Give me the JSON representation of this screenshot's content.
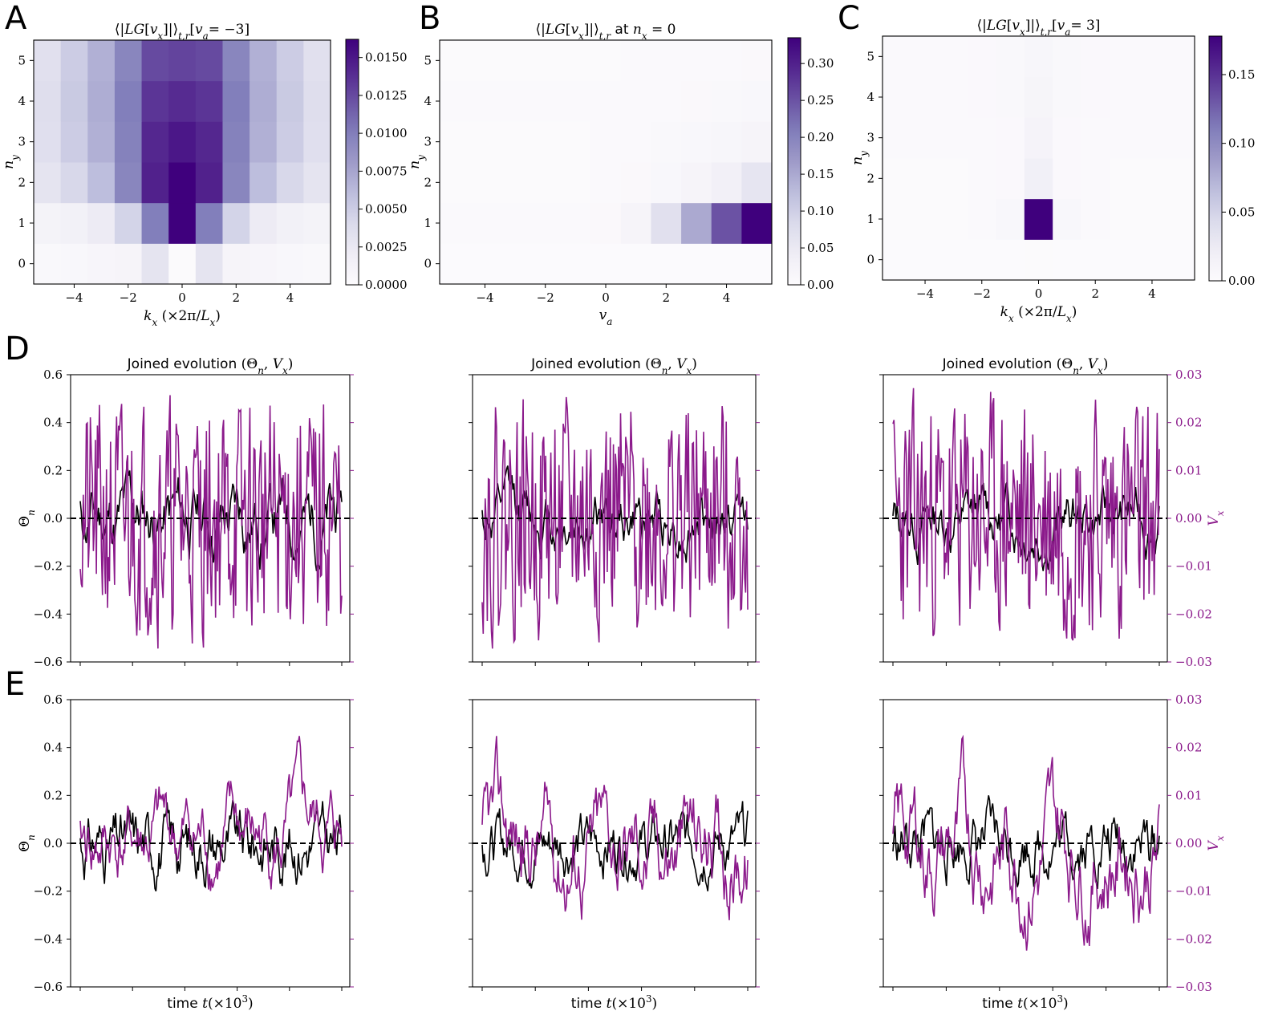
{
  "panel_letters": [
    "A",
    "B",
    "C",
    "D",
    "E"
  ],
  "colors": {
    "purple": "#8b1a8b",
    "black": "#000000",
    "cmap_low": "#fcfbfd",
    "cmap_high": "#3f007d"
  },
  "chart_data": [
    {
      "id": "A",
      "type": "heatmap",
      "title": "⟨|LG[vx]|⟩t,r[va= −3]",
      "xlabel": "kx (×2π/Lx)",
      "ylabel": "ny",
      "x": [
        -5,
        -4,
        -3,
        -2,
        -1,
        0,
        1,
        2,
        3,
        4,
        5
      ],
      "y": [
        0,
        1,
        2,
        3,
        4,
        5
      ],
      "xticks": [
        -4,
        -2,
        0,
        2,
        4
      ],
      "yticks": [
        0,
        1,
        2,
        3,
        4,
        5
      ],
      "clim": [
        0,
        0.0162
      ],
      "colorbar_ticks": [
        "0.0000",
        "0.0025",
        "0.0050",
        "0.0075",
        "0.0100",
        "0.0125",
        "0.0150"
      ],
      "colorbar_tick_values": [
        0,
        0.0025,
        0.005,
        0.0075,
        0.01,
        0.0125,
        0.015
      ],
      "z": [
        [
          0.0005,
          0.0006,
          0.0008,
          0.001,
          0.003,
          0.0002,
          0.003,
          0.001,
          0.0008,
          0.0006,
          0.0005
        ],
        [
          0.0012,
          0.0015,
          0.0022,
          0.0045,
          0.01,
          0.0165,
          0.01,
          0.0045,
          0.0022,
          0.0015,
          0.0012
        ],
        [
          0.003,
          0.0042,
          0.006,
          0.0095,
          0.0145,
          0.0162,
          0.0145,
          0.0095,
          0.006,
          0.0042,
          0.003
        ],
        [
          0.0035,
          0.005,
          0.0068,
          0.0098,
          0.0142,
          0.015,
          0.0142,
          0.0098,
          0.0068,
          0.005,
          0.0035
        ],
        [
          0.0036,
          0.0052,
          0.007,
          0.01,
          0.0135,
          0.014,
          0.0135,
          0.01,
          0.007,
          0.0052,
          0.0036
        ],
        [
          0.0034,
          0.005,
          0.0068,
          0.0095,
          0.0125,
          0.0128,
          0.0125,
          0.0095,
          0.0068,
          0.005,
          0.0034
        ]
      ]
    },
    {
      "id": "B",
      "type": "heatmap",
      "title": "⟨|LG[vx]|⟩t,r at nx = 0",
      "xlabel": "va",
      "ylabel": "ny",
      "x": [
        -5,
        -4,
        -3,
        -2,
        -1,
        0,
        1,
        2,
        3,
        4,
        5
      ],
      "y": [
        0,
        1,
        2,
        3,
        4,
        5
      ],
      "xticks": [
        -4,
        -2,
        0,
        2,
        4
      ],
      "yticks": [
        0,
        1,
        2,
        3,
        4,
        5
      ],
      "clim": [
        0,
        0.335
      ],
      "colorbar_ticks": [
        "0.00",
        "0.05",
        "0.10",
        "0.15",
        "0.20",
        "0.25",
        "0.30"
      ],
      "colorbar_tick_values": [
        0,
        0.05,
        0.1,
        0.15,
        0.2,
        0.25,
        0.3
      ],
      "z": [
        [
          0.002,
          0.002,
          0.002,
          0.002,
          0.002,
          0.002,
          0.002,
          0.002,
          0.002,
          0.002,
          0.002
        ],
        [
          0.006,
          0.006,
          0.006,
          0.006,
          0.006,
          0.008,
          0.02,
          0.07,
          0.15,
          0.25,
          0.335
        ],
        [
          0.004,
          0.004,
          0.004,
          0.004,
          0.004,
          0.005,
          0.008,
          0.012,
          0.02,
          0.032,
          0.06
        ],
        [
          0.004,
          0.004,
          0.004,
          0.004,
          0.004,
          0.005,
          0.007,
          0.01,
          0.012,
          0.015,
          0.02
        ],
        [
          0.005,
          0.005,
          0.005,
          0.005,
          0.005,
          0.005,
          0.006,
          0.007,
          0.008,
          0.01,
          0.012
        ],
        [
          0.004,
          0.004,
          0.004,
          0.004,
          0.004,
          0.004,
          0.005,
          0.005,
          0.006,
          0.007,
          0.008
        ]
      ]
    },
    {
      "id": "C",
      "type": "heatmap",
      "title": "⟨|LG[vx]|⟩t,r[va= 3]",
      "xlabel": "kx (×2π/Lx)",
      "ylabel": "ny",
      "x": [
        -5,
        -4,
        -3,
        -2,
        -1,
        0,
        1,
        2,
        3,
        4,
        5
      ],
      "y": [
        0,
        1,
        2,
        3,
        4,
        5
      ],
      "xticks": [
        -4,
        -2,
        0,
        2,
        4
      ],
      "yticks": [
        0,
        1,
        2,
        3,
        4,
        5
      ],
      "clim": [
        0,
        0.178
      ],
      "colorbar_ticks": [
        "0.00",
        "0.05",
        "0.10",
        "0.15"
      ],
      "colorbar_tick_values": [
        0,
        0.05,
        0.1,
        0.15
      ],
      "z": [
        [
          0.001,
          0.001,
          0.001,
          0.001,
          0.001,
          0.002,
          0.001,
          0.001,
          0.001,
          0.001,
          0.001
        ],
        [
          0.002,
          0.002,
          0.002,
          0.003,
          0.006,
          0.178,
          0.006,
          0.003,
          0.002,
          0.002,
          0.002
        ],
        [
          0.002,
          0.002,
          0.002,
          0.003,
          0.004,
          0.018,
          0.004,
          0.003,
          0.002,
          0.002,
          0.002
        ],
        [
          0.003,
          0.003,
          0.003,
          0.003,
          0.004,
          0.012,
          0.004,
          0.003,
          0.003,
          0.003,
          0.003
        ],
        [
          0.003,
          0.003,
          0.003,
          0.004,
          0.005,
          0.01,
          0.005,
          0.004,
          0.003,
          0.003,
          0.003
        ],
        [
          0.003,
          0.003,
          0.003,
          0.004,
          0.005,
          0.008,
          0.005,
          0.004,
          0.003,
          0.003,
          0.003
        ]
      ]
    },
    {
      "id": "D",
      "type": "line",
      "titles": [
        "Joined evolution (Θn, Vx)",
        "Joined evolution (Θn, Vx)",
        "Joined evolution (Θn, Vx)"
      ],
      "ylabel_left": "Θn",
      "ylabel_right": "Vx",
      "ylim_left": [
        -0.6,
        0.6
      ],
      "ylim_right": [
        -0.03,
        0.03
      ],
      "yticks_left": [
        "0.6",
        "0.4",
        "0.2",
        "0.0",
        "−0.2",
        "−0.4",
        "−0.6"
      ],
      "yticks_right": [
        "0.03",
        "0.02",
        "0.01",
        "0.00",
        "−0.01",
        "−0.02",
        "−0.03"
      ],
      "series": [
        {
          "name": "Θn",
          "color": "#000000",
          "amp": 0.22,
          "smooth": 0.88,
          "noise": 0.05,
          "seeds": [
            11,
            12,
            13
          ]
        },
        {
          "name": "Vx",
          "color": "#8b1a8b",
          "amp": 0.34,
          "smooth": 0.25,
          "noise": 0.3,
          "seeds": [
            21,
            22,
            23
          ]
        }
      ]
    },
    {
      "id": "E",
      "type": "line",
      "xlabel": "time t(×10³)",
      "ylabel_left": "Θn",
      "ylabel_right": "Vx",
      "ylim_left": [
        -0.6,
        0.6
      ],
      "ylim_right": [
        -0.03,
        0.03
      ],
      "yticks_left": [
        "0.6",
        "0.4",
        "0.2",
        "0.0",
        "−0.2",
        "−0.4",
        "−0.6"
      ],
      "yticks_right": [
        "0.03",
        "0.02",
        "0.01",
        "0.00",
        "−0.01",
        "−0.02",
        "−0.03"
      ],
      "series": [
        {
          "name": "Θn",
          "color": "#000000",
          "amp": 0.2,
          "smooth": 0.78,
          "noise": 0.12,
          "seeds": [
            31,
            32,
            33
          ]
        },
        {
          "name": "Vx",
          "color": "#8b1a8b",
          "amp": 0.28,
          "smooth": 0.9,
          "noise": 0.09,
          "seeds": [
            41,
            42,
            43
          ]
        }
      ]
    }
  ]
}
